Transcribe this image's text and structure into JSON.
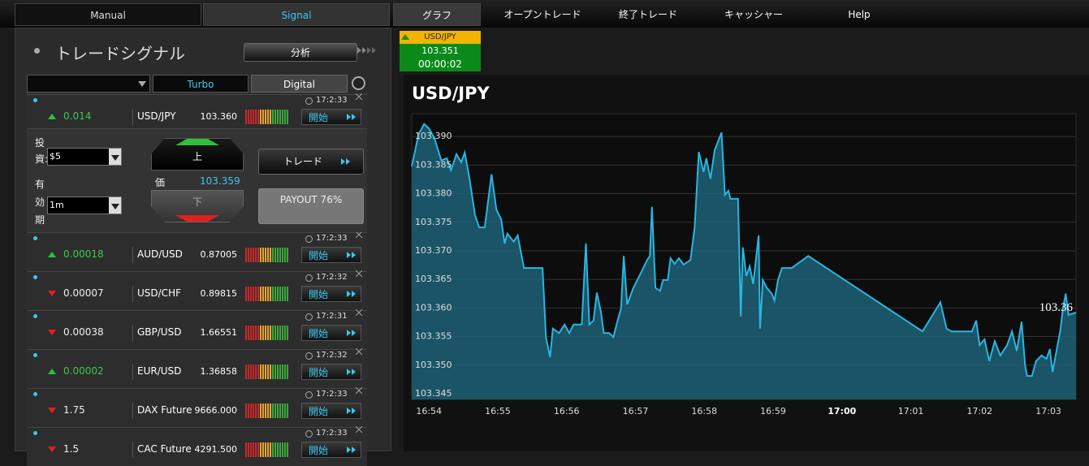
{
  "nav": [
    "Manual",
    "Signal",
    "グラフ",
    "オープントレード",
    "終了トレード",
    "キャッシャー",
    "Help"
  ],
  "panel": {
    "title": "トレードシグナル",
    "analysis_button": "分析",
    "tabs": [
      "Turbo",
      "Digital"
    ]
  },
  "signals": [
    {
      "time": "17:2:33",
      "change": "0.014",
      "dir": "up",
      "pair": "USD/JPY",
      "price": "103.360",
      "button": "開始"
    },
    {
      "time": "17:2:33",
      "change": "0.00018",
      "dir": "up",
      "pair": "AUD/USD",
      "price": "0.87005",
      "button": "開始"
    },
    {
      "time": "17:2:32",
      "change": "0.00007",
      "dir": "down",
      "pair": "USD/CHF",
      "price": "0.89815",
      "button": "開始"
    },
    {
      "time": "17:2:31",
      "change": "0.00038",
      "dir": "down",
      "pair": "GBP/USD",
      "price": "1.66551",
      "button": "開始"
    },
    {
      "time": "17:2:32",
      "change": "0.00002",
      "dir": "up",
      "pair": "EUR/USD",
      "price": "1.36858",
      "button": "開始"
    },
    {
      "time": "17:2:33",
      "change": "1.75",
      "dir": "down",
      "pair": "DAX Future",
      "price": "9666.000",
      "button": "開始"
    },
    {
      "time": "17:2:33",
      "change": "1.5",
      "dir": "down",
      "pair": "CAC Future",
      "price": "4291.500",
      "button": "開始"
    }
  ],
  "trade_form": {
    "invest_label": "投資:",
    "invest": "$5",
    "expiry_label": "有効期限:",
    "expiry": "1m",
    "up": "上",
    "price_label": "価",
    "price": "103.359",
    "down": "下",
    "trade_button": "トレード",
    "payout": "PAYOUT 76%"
  },
  "ticker": {
    "pair": "USD/JPY",
    "price": "103.351",
    "timer": "00:00:02"
  },
  "chart_data": {
    "type": "line",
    "title": "USD/JPY",
    "color": "#2bb5e0",
    "fill": "#1d6277",
    "xlim": [
      -0.25,
      9.4
    ],
    "xticks": [
      {
        "value": 0,
        "label": "16:54"
      },
      {
        "value": 1,
        "label": "16:55"
      },
      {
        "value": 2,
        "label": "16:56"
      },
      {
        "value": 3,
        "label": "16:57"
      },
      {
        "value": 4,
        "label": "16:58"
      },
      {
        "value": 5,
        "label": "16:59"
      },
      {
        "value": 6,
        "label": "17:00",
        "bold": true
      },
      {
        "value": 7,
        "label": "17:01"
      },
      {
        "value": 8,
        "label": "17:02"
      },
      {
        "value": 9,
        "label": "17:03"
      }
    ],
    "ylim": [
      103.344,
      103.394
    ],
    "yticks": [
      {
        "value": 103.345,
        "label": "103.345"
      },
      {
        "value": 103.35,
        "label": "103.350"
      },
      {
        "value": 103.355,
        "label": "103.355"
      },
      {
        "value": 103.36,
        "label": "103.360"
      },
      {
        "value": 103.365,
        "label": "103.365"
      },
      {
        "value": 103.37,
        "label": "103.370"
      },
      {
        "value": 103.375,
        "label": "103.375"
      },
      {
        "value": 103.38,
        "label": "103.380"
      },
      {
        "value": 103.385,
        "label": "103.385"
      },
      {
        "value": 103.39,
        "label": "103.390"
      }
    ],
    "grid": true,
    "x": [
      -0.25,
      -0.15,
      -0.07,
      0,
      0.08,
      0.18,
      0.26,
      0.32,
      0.4,
      0.47,
      0.52,
      0.59,
      0.67,
      0.73,
      0.81,
      0.91,
      0.98,
      1.05,
      1.1,
      1.14,
      1.23,
      1.29,
      1.38,
      1.65,
      1.7,
      1.76,
      1.8,
      1.89,
      1.97,
      2.04,
      2.1,
      2.22,
      2.28,
      2.33,
      2.39,
      2.44,
      2.5,
      2.54,
      2.62,
      2.68,
      2.74,
      2.79,
      2.83,
      2.88,
      2.97,
      3.07,
      3.17,
      3.21,
      3.24,
      3.29,
      3.36,
      3.4,
      3.47,
      3.51,
      3.57,
      3.63,
      3.7,
      3.8,
      3.86,
      3.92,
      3.99,
      4.03,
      4.09,
      4.15,
      4.25,
      4.3,
      4.35,
      4.38,
      4.49,
      4.53,
      4.56,
      4.61,
      4.66,
      4.71,
      4.75,
      4.79,
      4.81,
      4.85,
      4.91,
      4.98,
      5.02,
      5.07,
      5.13,
      5.27,
      5.51,
      7.17,
      7.43,
      7.52,
      7.59,
      7.89,
      7.95,
      8,
      8.07,
      8.14,
      8.22,
      8.3,
      8.4,
      8.47,
      8.54,
      8.61,
      8.66,
      8.69,
      8.76,
      8.82,
      8.9,
      8.97,
      9.02,
      9.06,
      9.12,
      9.17,
      9.21,
      9.25,
      9.29,
      9.4
    ],
    "values": [
      103.3848,
      103.3904,
      103.3922,
      103.3914,
      103.3897,
      103.3858,
      103.3862,
      103.3841,
      103.3869,
      103.3855,
      103.3872,
      103.3826,
      103.3762,
      103.3741,
      103.3741,
      103.3834,
      103.3772,
      103.3755,
      103.3713,
      103.373,
      103.3716,
      103.3727,
      103.367,
      103.367,
      103.3549,
      103.3514,
      103.3564,
      103.3556,
      103.3571,
      103.3556,
      103.3571,
      103.3571,
      103.3713,
      103.3571,
      103.3578,
      103.3627,
      103.3592,
      103.3556,
      103.3556,
      103.3549,
      103.3578,
      103.3599,
      103.3691,
      103.3606,
      103.3635,
      103.3659,
      103.3684,
      103.3691,
      103.3777,
      103.3635,
      103.363,
      103.3649,
      103.3649,
      103.3687,
      103.3677,
      103.3687,
      103.3676,
      103.3684,
      103.3741,
      103.3873,
      103.3838,
      103.3862,
      103.3826,
      103.3876,
      103.3907,
      103.3798,
      103.3805,
      103.3791,
      103.3791,
      103.3585,
      103.3706,
      103.3656,
      103.3673,
      103.3642,
      103.3684,
      103.3727,
      103.3564,
      103.3649,
      103.3635,
      103.3625,
      103.3613,
      103.3649,
      103.367,
      103.367,
      103.3691,
      103.3559,
      103.361,
      103.3564,
      103.3559,
      103.3559,
      103.3578,
      103.3535,
      103.3545,
      103.3507,
      103.3542,
      103.3517,
      103.3535,
      103.3559,
      103.3525,
      103.3576,
      103.35,
      103.3481,
      103.3481,
      103.3507,
      103.3517,
      103.3511,
      103.3528,
      103.3488,
      103.3528,
      103.3559,
      103.3599,
      103.3625,
      103.3588,
      103.3592
    ],
    "annotations": [
      {
        "text": "103.36",
        "value": 103.36
      }
    ]
  }
}
